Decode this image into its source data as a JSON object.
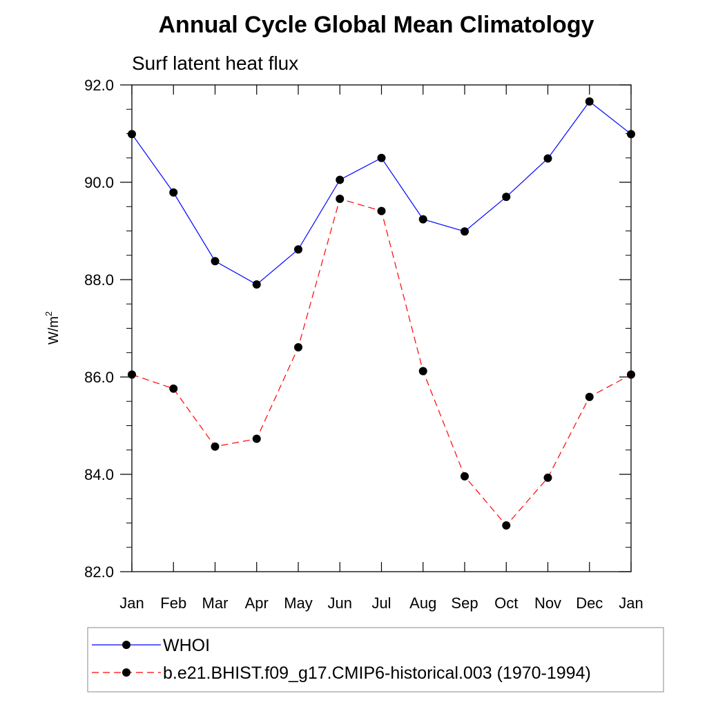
{
  "chart_data": {
    "type": "line",
    "title": "Annual Cycle Global Mean Climatology",
    "subtitle": "Surf latent heat flux",
    "ylabel_base": "W/m",
    "ylabel_sup": "2",
    "xlabel": "",
    "categories": [
      "Jan",
      "Feb",
      "Mar",
      "Apr",
      "May",
      "Jun",
      "Jul",
      "Aug",
      "Sep",
      "Oct",
      "Nov",
      "Dec",
      "Jan"
    ],
    "ylim": [
      82.0,
      92.0
    ],
    "yticks": [
      "82.0",
      "84.0",
      "86.0",
      "88.0",
      "90.0",
      "92.0"
    ],
    "grid": false,
    "legend_position": "bottom",
    "series": [
      {
        "name": "WHOI",
        "color": "#0000ff",
        "dash": "solid",
        "marker": "filled-circle",
        "values": [
          90.99,
          89.79,
          88.38,
          87.9,
          88.62,
          90.05,
          90.5,
          89.24,
          88.99,
          89.7,
          90.49,
          91.66,
          90.99
        ]
      },
      {
        "name": "b.e21.BHIST.f09_g17.CMIP6-historical.003 (1970-1994)",
        "color": "#ff0000",
        "dash": "dashed",
        "marker": "filled-circle",
        "values": [
          86.05,
          85.76,
          84.57,
          84.73,
          86.61,
          89.66,
          89.41,
          86.12,
          83.96,
          82.95,
          83.93,
          85.59,
          86.05
        ]
      }
    ]
  }
}
